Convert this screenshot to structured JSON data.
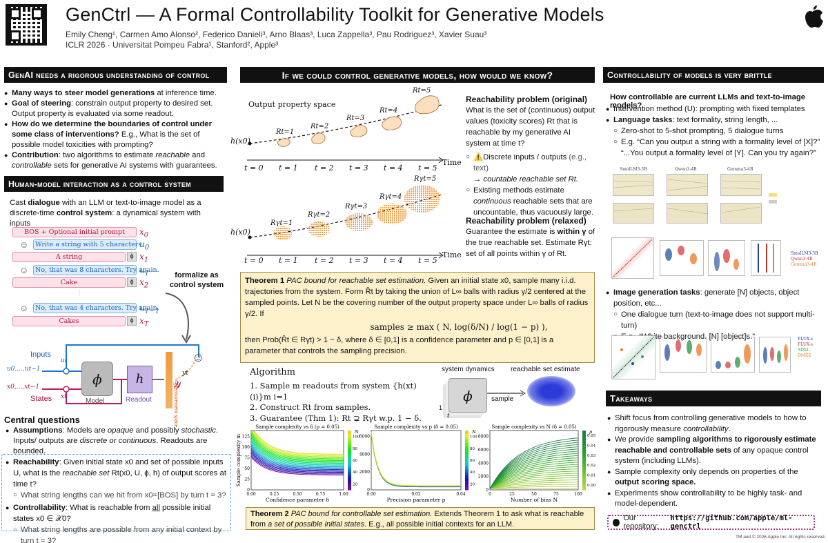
{
  "header": {
    "title": "GenCtrl — A Formal Controllability Toolkit for Generative Models",
    "authors": "Emily Cheng¹, Carmen Amo Alonso², Federico Danieli³, Arno Blaas³, Luca Zappella³, Pau Rodriguez³, Xavier Suau³",
    "venue": "ICLR 2026 · Universitat Pompeu Fabra¹, Stanford², Apple³"
  },
  "col1": {
    "h1": "GenAI needs a rigorous understanding of control",
    "b1a": "Many ways to steer model generations",
    "b1b": " at inference time.",
    "b2a": "Goal of steering",
    "b2b": ": constrain output property to desired set. Output property is evaluated via some readout.",
    "b3a": "How do we determine the boundaries of control under some class of interventions?",
    "b3b": " E.g., What is the set of possible model toxicities with prompting?",
    "b4a": "Contribution",
    "b4b": ": two algorithms to estimate ",
    "b4c": "reachable",
    "b4d": " and ",
    "b4e": "controllable",
    "b4f": " sets for generative AI systems with guarantees.",
    "h2": "Human-model interaction as a control system",
    "intro1": "Cast ",
    "intro2": "dialogue",
    "intro3": " with an LLM or text-to-image model as a discrete-time ",
    "intro4": "control system",
    "intro5": ": a dynamical system with inputs",
    "chips": [
      "BOS + Optional initial prompt",
      "Write a string with 5 characters",
      "A string",
      "No, that was 8 characters. Try again.",
      "Cake",
      "No, that was 4 characters. Try again.",
      "Cakes"
    ],
    "chip_vars": [
      "x0",
      "u0",
      "x1",
      "u1",
      "x2",
      "uT−1",
      "xT"
    ],
    "formalize": "formalize as control system",
    "diag": {
      "inputs": "Inputs",
      "states": "States",
      "model": "Model",
      "readout": "Readout",
      "phi": "ϕ",
      "h": "h",
      "measure": "Measurement space",
      "u_seq": "u0,...,ut−1",
      "x_seq": "x0,...,xt−1",
      "ut": "ut",
      "xt": "xt",
      "yt": "yt",
      "Y": "𝒴"
    },
    "cq_title": "Central questions",
    "cq1a": "Assumptions",
    "cq1b": ": Models are ",
    "cq1c": "opaque",
    "cq1d": " and possibly ",
    "cq1e": "stochastic",
    "cq1f": ". Inputs/ outputs are ",
    "cq1g": "discrete or continuous",
    "cq1h": ". Readouts are bounded.",
    "cq2a": "Reachability",
    "cq2b": ": Given initial state x0 and set of possible inputs U, what is the ",
    "cq2c": "reachable set",
    "cq2d": " Rt(x0, U, ϕ, h) of output scores at time t?",
    "cq2s": "What string lengths can we hit from x0=[BOS] by turn t = 3?",
    "cq3a": "Controllability",
    "cq3b": ": What is reachable from ",
    "cq3c": "all",
    "cq3d": " possible initial states x0 ∈ 𝒳0?",
    "cq3s": "What string lengths are possible from any initial context by turn t = 3?"
  },
  "col2": {
    "h": "If we could control generative models, how would we know?",
    "plot1_title": "Output property space",
    "hx0": "h(x0)",
    "time": "Time",
    "tlabels": [
      "t = 0",
      "t = 1",
      "t = 2",
      "t = 3",
      "t = 4",
      "t = 5"
    ],
    "rlabels": [
      "Rt=1",
      "Rt=2",
      "Rt=3",
      "Rt=4",
      "Rt=5"
    ],
    "rglabels": [
      "Rγt=1",
      "Rγt=2",
      "Rγt=3",
      "Rγt=4",
      "Rγt=5"
    ],
    "rp1_title": "Reachability problem (original)",
    "rp1_text": "What is the set of (continuous) output values (toxicity scores) Rt that is reachable by my generative AI system at time t?",
    "rp1_s1a": "⚠️Discrete inputs / outputs",
    "rp1_s1b": " (e.g., text)",
    "rp1_s1c": "→ countable reachable set Rt.",
    "rp1_s2a": "Existing methods estimate ",
    "rp1_s2b": "continuous",
    "rp1_s2c": " reachable sets that are uncountable, thus vacuously large.",
    "rp2_title": "Reachability problem (relaxed)",
    "rp2_a": "Guarantee the estimate is ",
    "rp2_b": "within γ",
    "rp2_c": " of the true reachable set. Estimate Rγt: set of all points within γ of Rt.",
    "th1_a": "Theorem 1 ",
    "th1_b": "PAC bound for reachable set estimation.",
    "th1_c": " Given an initial state x0, sample many i.i.d. trajectories from the system. Form R̂t by taking the union of L∞ balls with radius γ/2 centered at the sampled points. Let N be the covering number of the output property space under L∞ balls of radius γ/2. If",
    "th1_eq": "samples ≥ max ( N, log(δ/N) / log(1 − p) ),",
    "th1_d": "then Prob(R̂t ∈ Rγt) > 1 − δ, where δ ∈ [0,1] is a confidence parameter and p ∈ [0,1] is a parameter that controls the sampling precision.",
    "alg_title": "Algorithm",
    "alg": [
      "Sample m readouts from system {h(xt)(i)}m i=1",
      "Construct Rt from samples.",
      "Guarantee (Thm 1): Rt ⊋ Rγt w.p. 1 − δ."
    ],
    "sysdyn": "system dynamics",
    "rse": "reachable set estimate",
    "sample": "sample",
    "phi": "ϕ",
    "one": "1",
    "t": "t",
    "th2_a": "Theorem 2 ",
    "th2_b": "PAC bound for controllable set estimation.",
    "th2_c": " Extends Theorem 1 to ask what is reachable from ",
    "th2_d": "a set of possible initial states",
    "th2_e": ". E.g., all possible initial contexts for an LLM."
  },
  "col3": {
    "h1": "Controllability of models is very brittle",
    "q": "How controllable are current LLMs and text-to-image models?",
    "b1": "Intervention method (U): prompting with fixed templates",
    "b2a": "Language tasks",
    "b2b": ": text formality, string length, ...",
    "s1": "Zero-shot to 5-shot prompting, 5 dialogue turns",
    "s2": "E.g. “Can you output a string with a formality level of [X]?” “...You output a formality level of [Y]. Can you try again?”",
    "b3a": "Image generation tasks",
    "b3b": ": generate [N] objects, object position, etc...",
    "s3": "One dialogue turn (text-to-image does not support multi-turn)",
    "s4": "E.g., “White background. [N] [object]s.”",
    "thumbs": [
      "SmolLM3-3B",
      "Qwen3-4B",
      "Gemma3-4B"
    ],
    "legend1": [
      "SmolLM3-3B",
      "Qwen3-4B",
      "Gemma3-4B"
    ],
    "legend2": [
      "FLUX-s",
      "FLUX-s",
      "SDXL",
      "DMD2"
    ],
    "h2": "Takeaways",
    "t1a": "Shift focus from controlling generative models to how to rigorously measure ",
    "t1b": "controllability",
    "t2a": "We provide ",
    "t2b": "sampling algorithms to rigorously estimate reachable and controllable sets",
    "t2c": " of any opaque control system (including LLMs).",
    "t3a": "Sample complexity only depends on properties of the ",
    "t3b": "output scoring space.",
    "t4": "Experiments show controllability to be highly task- and model-dependent.",
    "repo_label": "Our repository: ",
    "repo_url": "https://github.com/apple/ml-genctrl",
    "copyright": "TM and © 2026 Apple Inc. All rights reserved."
  },
  "chart_data": [
    {
      "type": "line",
      "title": "Sample complexity vs δ (p = 0.05)",
      "xlabel": "Confidence parameter δ",
      "ylabel": "Sample complexity m",
      "xlim": [
        0,
        1
      ],
      "ylim": [
        0,
        140
      ],
      "xticks": [
        "0.00",
        "0.25",
        "0.50",
        "0.75",
        "1.00"
      ],
      "yticks": [
        "0",
        "25",
        "50",
        "75",
        "100",
        "125"
      ],
      "colorbar": {
        "label": "N",
        "ticks": [
          "20",
          "40",
          "60",
          "80",
          "100"
        ]
      }
    },
    {
      "type": "line",
      "title": "Sample complexity vs p (δ = 0.05)",
      "xlabel": "Precision parameter p",
      "ylabel": "",
      "xlim": [
        0,
        0.05
      ],
      "ylim": [
        0,
        7000
      ],
      "xticks": [
        "0.00",
        "0.02",
        "0.04"
      ],
      "yticks": [
        "0",
        "2000",
        "4000",
        "6000"
      ],
      "colorbar": {
        "label": "N",
        "ticks": [
          "20",
          "40",
          "60",
          "80",
          "100"
        ]
      }
    },
    {
      "type": "line",
      "title": "Sample complexity vs N (δ = 0.05)",
      "xlabel": "Number of bins N",
      "ylabel": "",
      "xlim": [
        0,
        100
      ],
      "ylim": [
        0,
        8000
      ],
      "xticks": [
        "0",
        "25",
        "50",
        "75",
        "100"
      ],
      "yticks": [
        "0",
        "2000",
        "4000",
        "6000",
        "8000"
      ],
      "colorbar": {
        "label": "p",
        "ticks": [
          "0.001",
          "0.01",
          "0.02",
          "0.03",
          "0.04",
          "0.05"
        ]
      }
    }
  ],
  "colors": {
    "pink": "#c2185b",
    "blue": "#1976d2",
    "orange": "#f39a3c",
    "yellow_bg": "#fdf1cc",
    "purple": "#8e44ad"
  }
}
